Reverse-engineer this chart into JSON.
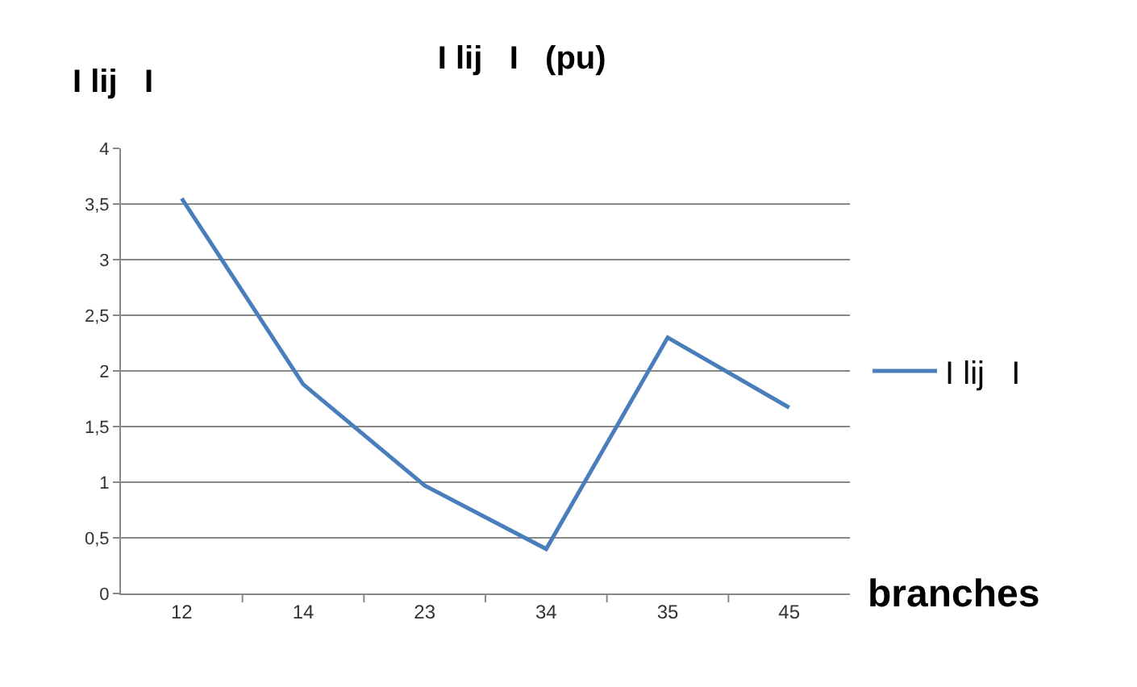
{
  "chart_data": {
    "type": "line",
    "title": "I lij   I   (pu)",
    "ylabel": "I lij   I",
    "xlabel": "branches",
    "categories": [
      "12",
      "14",
      "23",
      "34",
      "35",
      "45"
    ],
    "series": [
      {
        "name": "I lij   I",
        "color": "#4a7ebb",
        "values": [
          3.55,
          1.88,
          0.97,
          0.4,
          2.3,
          1.67
        ]
      }
    ],
    "ylim": [
      0,
      4
    ],
    "yticks": [
      0,
      {
        "value": 0.5,
        "label": "0,5"
      },
      1,
      {
        "value": 1.5,
        "label": "1,5"
      },
      2,
      {
        "value": 2.5,
        "label": "2,5"
      },
      3,
      {
        "value": 3.5,
        "label": "3,5"
      },
      4
    ],
    "grid": "y",
    "legend": "right",
    "marker": "none",
    "line_style": "solid"
  }
}
